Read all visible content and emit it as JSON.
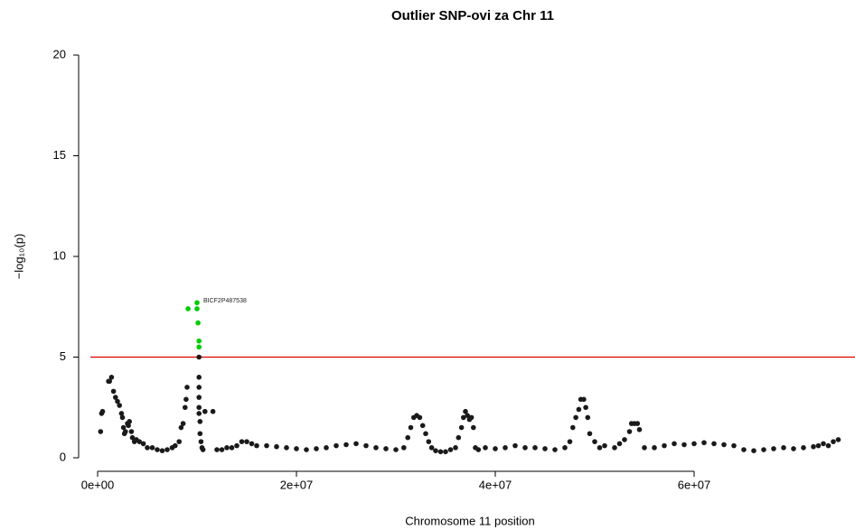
{
  "chart_data": {
    "type": "scatter",
    "title": "Outlier SNP-ovi za Chr 11",
    "xlabel": "Chromosome 11 position",
    "ylabel": "−log₁₀(p)",
    "color": "#1a1a1a",
    "x": [
      300000,
      400000,
      500000,
      1100000,
      1200000,
      1400000,
      1600000,
      1800000,
      2000000,
      2200000,
      2400000,
      2500000,
      2600000,
      2700000,
      2800000,
      3000000,
      3100000,
      3200000,
      3400000,
      3500000,
      3700000,
      3900000,
      4200000,
      4600000,
      5000000,
      5500000,
      6000000,
      6500000,
      7000000,
      7500000,
      7800000,
      8200000,
      8400000,
      8600000,
      8800000,
      8900000,
      9000000,
      10200000,
      10200000,
      10200000,
      10200000,
      10200000,
      10200000,
      10300000,
      10300000,
      10400000,
      10500000,
      10600000,
      10800000,
      11600000,
      12000000,
      12500000,
      13000000,
      13500000,
      14000000,
      14500000,
      15000000,
      15500000,
      16000000,
      17000000,
      18000000,
      19000000,
      20000000,
      21000000,
      22000000,
      23000000,
      24000000,
      25000000,
      26000000,
      27000000,
      28000000,
      29000000,
      30000000,
      30800000,
      31200000,
      31500000,
      31800000,
      32100000,
      32400000,
      32700000,
      33000000,
      33300000,
      33600000,
      34000000,
      34500000,
      35000000,
      35500000,
      36000000,
      36300000,
      36600000,
      36800000,
      37000000,
      37200000,
      37400000,
      37600000,
      37800000,
      38000000,
      38300000,
      39000000,
      40000000,
      41000000,
      42000000,
      43000000,
      44000000,
      45000000,
      46000000,
      47000000,
      47500000,
      47800000,
      48100000,
      48400000,
      48600000,
      48900000,
      49100000,
      49300000,
      49500000,
      50000000,
      50500000,
      51000000,
      52000000,
      52500000,
      53000000,
      53500000,
      53700000,
      54000000,
      54300000,
      54500000,
      55000000,
      56000000,
      57000000,
      58000000,
      59000000,
      60000000,
      61000000,
      62000000,
      63000000,
      64000000,
      65000000,
      66000000,
      67000000,
      68000000,
      69000000,
      70000000,
      71000000,
      72000000,
      72500000,
      73000000,
      73500000,
      74000000,
      74500000
    ],
    "values": [
      1.3,
      2.2,
      2.3,
      3.8,
      3.8,
      4.0,
      3.3,
      3.0,
      2.8,
      2.6,
      2.2,
      2.0,
      1.5,
      1.2,
      1.3,
      1.7,
      1.6,
      1.8,
      1.3,
      1.0,
      0.8,
      0.9,
      0.8,
      0.7,
      0.5,
      0.5,
      0.4,
      0.35,
      0.4,
      0.5,
      0.6,
      0.8,
      1.5,
      1.7,
      2.5,
      2.9,
      3.5,
      5.0,
      4.0,
      3.5,
      3.0,
      2.5,
      2.2,
      1.8,
      1.2,
      0.8,
      0.5,
      0.4,
      2.3,
      2.3,
      0.4,
      0.4,
      0.5,
      0.5,
      0.6,
      0.8,
      0.8,
      0.7,
      0.6,
      0.6,
      0.55,
      0.5,
      0.45,
      0.4,
      0.45,
      0.5,
      0.6,
      0.65,
      0.7,
      0.6,
      0.5,
      0.45,
      0.4,
      0.5,
      1.0,
      1.5,
      2.0,
      2.1,
      2.0,
      1.6,
      1.2,
      0.8,
      0.5,
      0.35,
      0.3,
      0.3,
      0.4,
      0.5,
      1.0,
      1.5,
      2.0,
      2.3,
      2.1,
      1.9,
      2.0,
      1.5,
      0.5,
      0.4,
      0.5,
      0.45,
      0.5,
      0.6,
      0.5,
      0.5,
      0.45,
      0.4,
      0.5,
      0.8,
      1.5,
      2.0,
      2.4,
      2.9,
      2.9,
      2.5,
      2.0,
      1.2,
      0.8,
      0.5,
      0.6,
      0.5,
      0.7,
      0.9,
      1.3,
      1.7,
      1.7,
      1.7,
      1.4,
      0.5,
      0.5,
      0.6,
      0.7,
      0.65,
      0.7,
      0.75,
      0.7,
      0.65,
      0.6,
      0.4,
      0.35,
      0.4,
      0.45,
      0.5,
      0.45,
      0.5,
      0.55,
      0.6,
      0.7,
      0.6,
      0.8,
      0.9
    ],
    "highlight": {
      "color": "#00cc00",
      "x": [
        9100000,
        10000000,
        10000000,
        10100000,
        10200000,
        10200000
      ],
      "values": [
        7.4,
        7.7,
        7.4,
        6.7,
        5.8,
        5.5
      ],
      "annotation": "BICF2P487538"
    },
    "threshold": 5,
    "threshold_color": "#e00000",
    "xlim": [
      -727000,
      75636000
    ],
    "ylim": [
      0,
      20
    ],
    "xticks": [
      {
        "value": 0,
        "label": "0e+00"
      },
      {
        "value": 20000000,
        "label": "2e+07"
      },
      {
        "value": 40000000,
        "label": "4e+07"
      },
      {
        "value": 60000000,
        "label": "6e+07"
      }
    ],
    "yticks": [
      0,
      5,
      10,
      15,
      20
    ],
    "grid": false
  }
}
